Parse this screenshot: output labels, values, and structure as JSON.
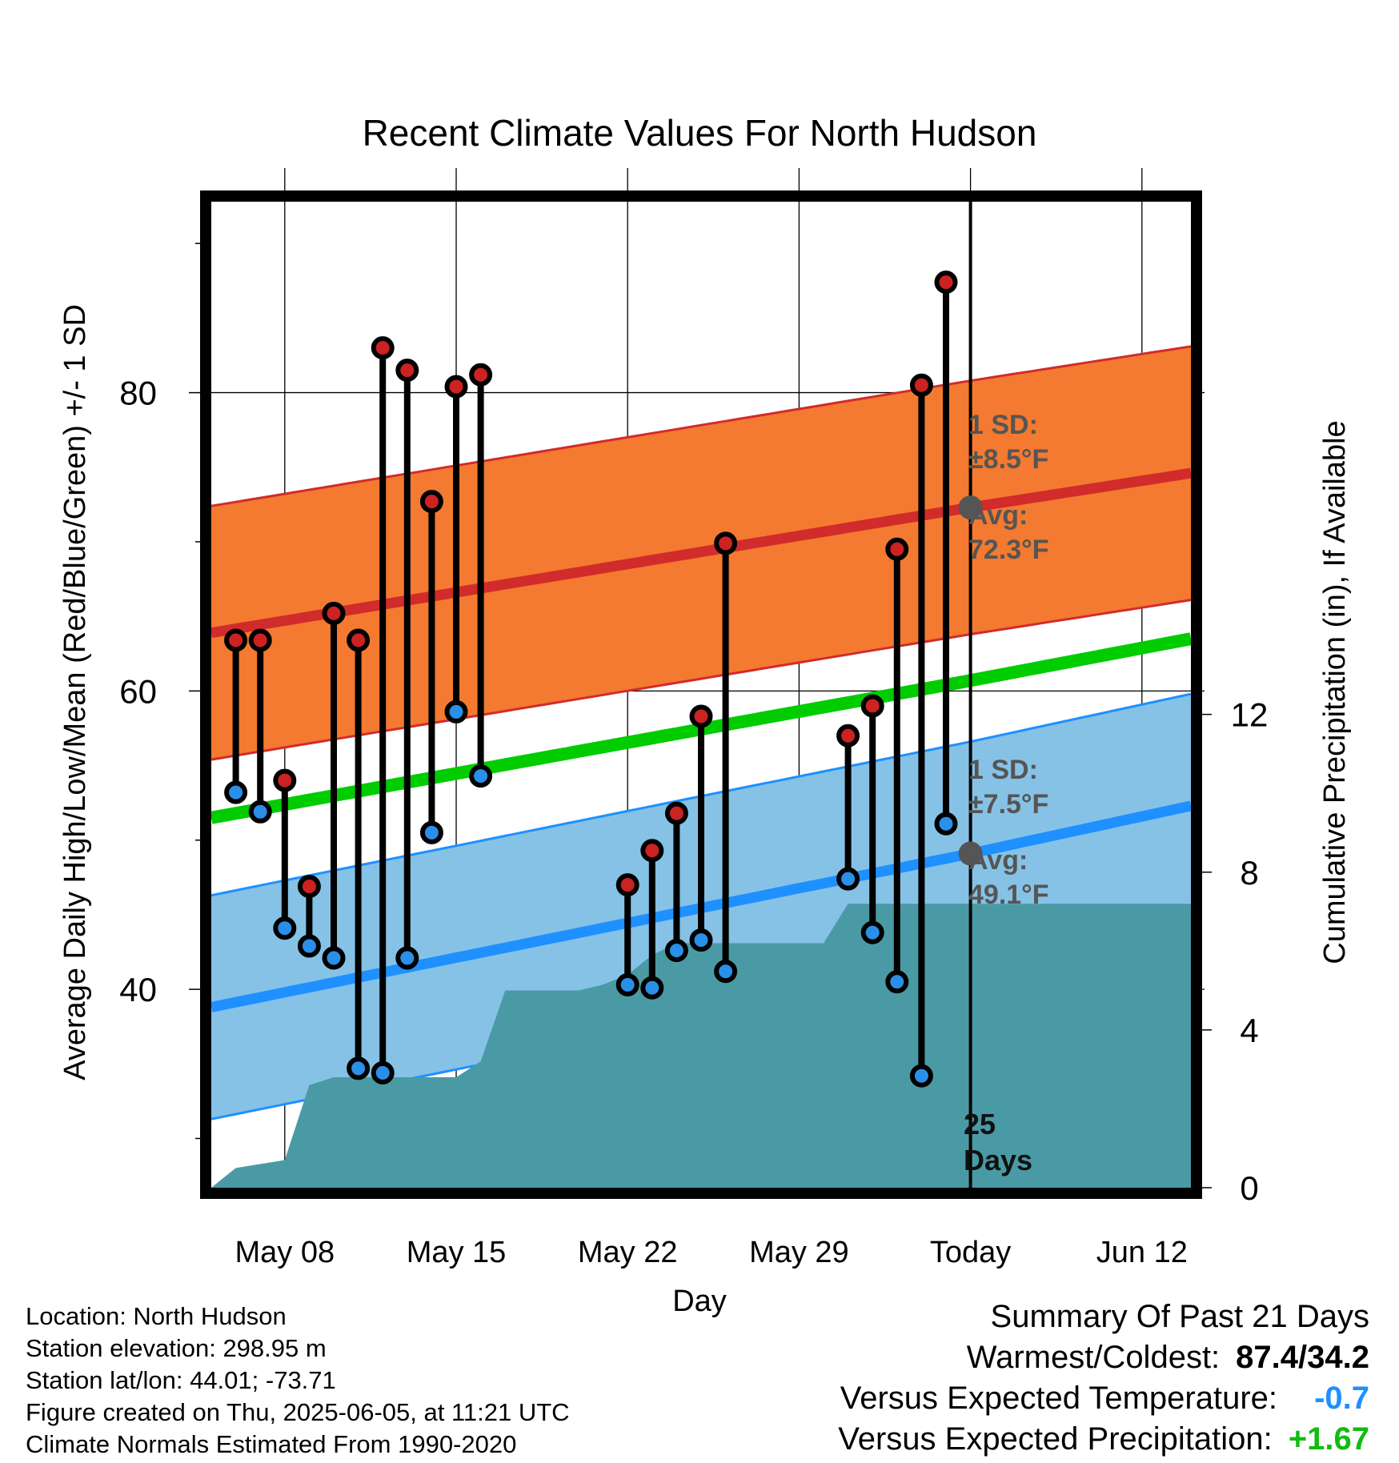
{
  "chart_data": {
    "type": "line",
    "title": "Recent Climate Values For North Hudson",
    "xlabel": "Day",
    "ylabel": "Average Daily High/Low/Mean (Red/Blue/Green) +/- 1 SD",
    "y2label": "Cumulative Precipitation (in), If Available",
    "x_ticks": [
      "May 08",
      "May 15",
      "May 22",
      "May 29",
      "Today",
      "Jun 12"
    ],
    "y_ticks": [
      "40",
      "60",
      "80"
    ],
    "y2_ticks": [
      "0",
      "4",
      "8",
      "12"
    ],
    "ylim": [
      26.7,
      92.8
    ],
    "y2lim": [
      0,
      25
    ],
    "x_range_days": [
      "May 05",
      "Jun 14"
    ],
    "grid": true,
    "normals": {
      "high_avg": {
        "start": 63.9,
        "today": 72.3,
        "end": 74.6
      },
      "high_sd": 8.5,
      "low_avg": {
        "start": 38.8,
        "today": 49.1,
        "end": 52.3
      },
      "low_sd": 7.5,
      "mean_avg": {
        "start": 51.5,
        "today": 60.7,
        "end": 63.5
      }
    },
    "today_annotation": {
      "high_sd_label": "1 SD:",
      "high_sd_value": "±8.5°F",
      "high_avg_label": "Avg:",
      "high_avg_value": "72.3°F",
      "low_sd_label": "1 SD:",
      "low_sd_value": "±7.5°F",
      "low_avg_label": "Avg:",
      "low_avg_value": "49.1°F",
      "days_number": "25",
      "days_label": "Days"
    },
    "daily_obs": [
      {
        "date": "May 06",
        "high": 63.4,
        "low": 53.2
      },
      {
        "date": "May 07",
        "high": 63.4,
        "low": 51.9
      },
      {
        "date": "May 08",
        "high": 54.0,
        "low": 44.1
      },
      {
        "date": "May 09",
        "high": 46.9,
        "low": 42.9
      },
      {
        "date": "May 10",
        "high": 65.2,
        "low": 42.1
      },
      {
        "date": "May 11",
        "high": 63.4,
        "low": 34.7
      },
      {
        "date": "May 12",
        "high": 83.0,
        "low": 34.4
      },
      {
        "date": "May 13",
        "high": 81.5,
        "low": 42.1
      },
      {
        "date": "May 14",
        "high": 72.7,
        "low": 50.5
      },
      {
        "date": "May 15",
        "high": 80.4,
        "low": 58.6
      },
      {
        "date": "May 16",
        "high": 81.2,
        "low": 54.3
      },
      {
        "date": "May 22",
        "high": 47.0,
        "low": 40.3
      },
      {
        "date": "May 23",
        "high": 49.3,
        "low": 40.1
      },
      {
        "date": "May 24",
        "high": 51.8,
        "low": 42.6
      },
      {
        "date": "May 25",
        "high": 58.3,
        "low": 43.3
      },
      {
        "date": "May 26",
        "high": 69.9,
        "low": 41.2
      },
      {
        "date": "May 31",
        "high": 57.0,
        "low": 47.4
      },
      {
        "date": "Jun 01",
        "high": 59.0,
        "low": 43.8
      },
      {
        "date": "Jun 02",
        "high": 69.5,
        "low": 40.5
      },
      {
        "date": "Jun 03",
        "high": 80.5,
        "low": 34.2
      },
      {
        "date": "Jun 04",
        "high": 87.4,
        "low": 51.1
      }
    ],
    "cumulative_precip": [
      {
        "date": "May 05",
        "value": 0.0
      },
      {
        "date": "May 06",
        "value": 0.5
      },
      {
        "date": "May 08",
        "value": 0.7
      },
      {
        "date": "May 09",
        "value": 2.6
      },
      {
        "date": "May 10",
        "value": 2.8
      },
      {
        "date": "May 15",
        "value": 2.8
      },
      {
        "date": "May 16",
        "value": 3.2
      },
      {
        "date": "May 17",
        "value": 5.0
      },
      {
        "date": "May 20",
        "value": 5.0
      },
      {
        "date": "May 21",
        "value": 5.15
      },
      {
        "date": "May 22",
        "value": 5.4
      },
      {
        "date": "May 23",
        "value": 5.9
      },
      {
        "date": "May 24",
        "value": 6.2
      },
      {
        "date": "May 30",
        "value": 6.2
      },
      {
        "date": "May 31",
        "value": 7.2
      },
      {
        "date": "Jun 14",
        "value": 7.2
      }
    ]
  },
  "footer": {
    "location": "Location: North Hudson",
    "elevation": "Station elevation: 298.95 m",
    "latlon": "Station lat/lon: 44.01; -73.71",
    "created": "Figure created on Thu, 2025-06-05, at 11:21 UTC",
    "normals": "Climate Normals Estimated From 1990-2020"
  },
  "summary": {
    "heading": "Summary Of Past 21 Days",
    "warm_cold_label": "Warmest/Coldest:",
    "warm_cold_value": "87.4/34.2",
    "temp_label": "Versus Expected Temperature:",
    "temp_value": "-0.7",
    "precip_label": "Versus Expected Precipitation:",
    "precip_value": "+1.67"
  },
  "colors": {
    "high_band": "#f37a30",
    "high_line": "#d22b2b",
    "low_band": "#86c2e6",
    "low_line": "#1e90ff",
    "mean_line": "#00cc00",
    "precip": "#4a9aa5",
    "high_dot": "#cc2222",
    "low_dot": "#2a8fe8",
    "temp_value": "#1e90ff",
    "precip_value": "#11bb11",
    "annotation": "#555555"
  }
}
